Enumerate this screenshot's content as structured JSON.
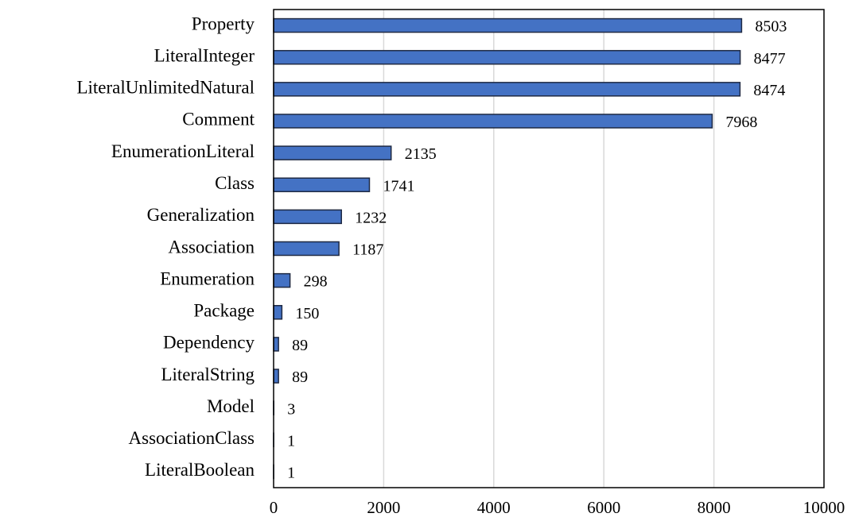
{
  "chart_data": {
    "type": "bar",
    "categories": [
      "Property",
      "LiteralInteger",
      "LiteralUnlimitedNatural",
      "Comment",
      "EnumerationLiteral",
      "Class",
      "Generalization",
      "Association",
      "Enumeration",
      "Package",
      "Dependency",
      "LiteralString",
      "Model",
      "AssociationClass",
      "LiteralBoolean"
    ],
    "values": [
      8503,
      8477,
      8474,
      7968,
      2135,
      1741,
      1232,
      1187,
      298,
      150,
      89,
      89,
      3,
      1,
      1
    ],
    "color": "#4472c4",
    "xlim": [
      0,
      10000
    ],
    "xticks": [
      0,
      2000,
      4000,
      6000,
      8000,
      10000
    ],
    "grid": true
  }
}
